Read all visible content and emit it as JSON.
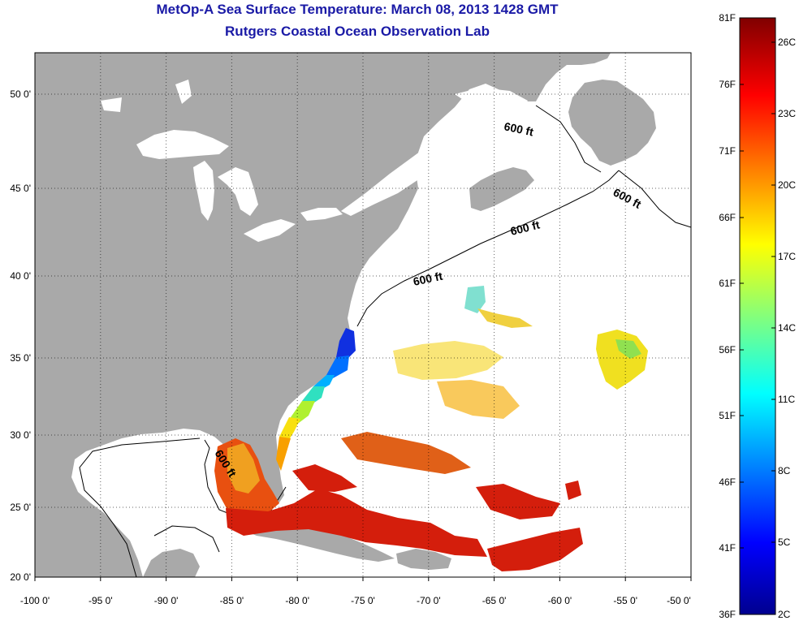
{
  "title": "MetOp-A Sea Surface Temperature:  March 08, 2013 1428 GMT",
  "subtitle": "Rutgers Coastal Ocean Observation Lab",
  "x_ticks": [
    "-100 0'",
    "-95 0'",
    "-90 0'",
    "-85 0'",
    "-80 0'",
    "-75 0'",
    "-70 0'",
    "-65 0'",
    "-60 0'",
    "-55 0'",
    "-50 0'"
  ],
  "y_ticks": [
    "50 0'",
    "45 0'",
    "40 0'",
    "35 0'",
    "30 0'",
    "25 0'",
    "20 0'"
  ],
  "contour_label": "600 ft",
  "colorbar": {
    "fahrenheit": [
      "81F",
      "76F",
      "71F",
      "66F",
      "61F",
      "56F",
      "51F",
      "46F",
      "41F",
      "36F"
    ],
    "celsius": [
      "26C",
      "23C",
      "20C",
      "17C",
      "14C",
      "11C",
      "8C",
      "5C",
      "2C"
    ]
  },
  "colors": {
    "land": "#a9a9a9",
    "title": "#1a1aa6",
    "water": "#ffffff"
  }
}
